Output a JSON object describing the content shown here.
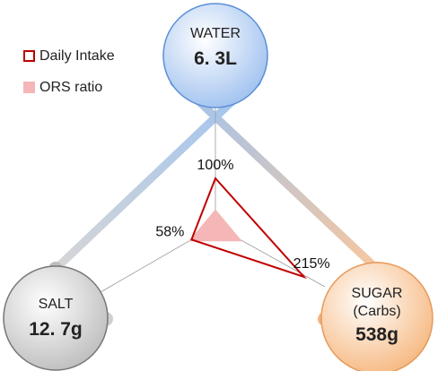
{
  "chart_data": {
    "type": "radar",
    "categories": [
      "WATER",
      "SALT",
      "SUGAR (Carbs)"
    ],
    "amounts": [
      "6. 3L",
      "12. 7g",
      "538g"
    ],
    "series": [
      {
        "name": "Daily Intake",
        "color": "#c00000",
        "values": [
          100,
          58,
          215
        ],
        "value_labels": [
          "100%",
          "58%",
          "215%"
        ]
      },
      {
        "name": "ORS ratio",
        "color": "#f4b6b6",
        "values": [
          35,
          65,
          65
        ]
      }
    ]
  }
}
